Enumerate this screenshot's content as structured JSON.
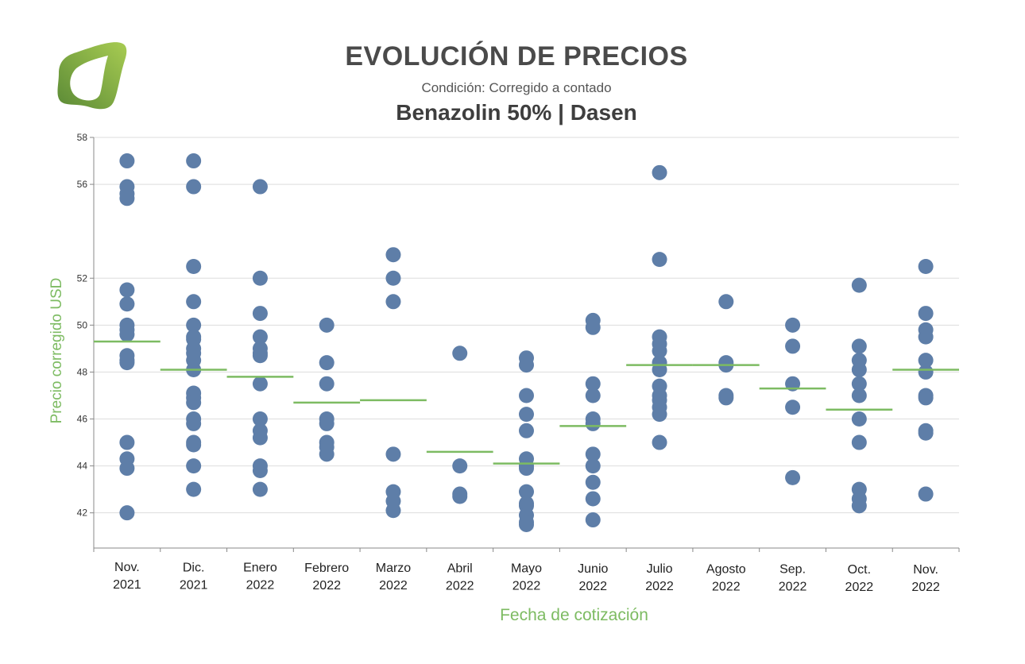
{
  "header": {
    "title": "EVOLUCIÓN DE PRECIOS",
    "subtitle": "Condición: Corregido a contado",
    "product": "Benazolin 50% | Dasen"
  },
  "logo": {
    "icon": "leaf-logo-icon",
    "colors": [
      "#9bc44c",
      "#5f8a3a"
    ]
  },
  "colors": {
    "points": "#5e7ea8",
    "mean_line": "#7dbb62",
    "axis_title": "#7dbb62",
    "grid": "#dddddd"
  },
  "chart_data": {
    "type": "scatter",
    "xlabel": "Fecha de cotización",
    "ylabel": "Precio corregido  USD",
    "ylim": [
      40.5,
      58
    ],
    "yticks": [
      42,
      44,
      46,
      48,
      50,
      52,
      56,
      58
    ],
    "ytick_labels": [
      "42",
      "44",
      "46",
      "48",
      "50",
      "52",
      "56",
      "58"
    ],
    "grid": true,
    "categories": [
      [
        "Nov.",
        "2021"
      ],
      [
        "Dic.",
        "2021"
      ],
      [
        "Enero",
        "2022"
      ],
      [
        "Febrero",
        "2022"
      ],
      [
        "Marzo",
        "2022"
      ],
      [
        "Abril",
        "2022"
      ],
      [
        "Mayo",
        "2022"
      ],
      [
        "Junio",
        "2022"
      ],
      [
        "Julio",
        "2022"
      ],
      [
        "Agosto",
        "2022"
      ],
      [
        "Sep.",
        "2022"
      ],
      [
        "Oct.",
        "2022"
      ],
      [
        "Nov.",
        "2022"
      ]
    ],
    "points": [
      [
        57,
        55.9,
        55.6,
        55.4,
        51.5,
        50.9,
        50,
        49.8,
        49.6,
        48.7,
        48.5,
        48.4,
        45,
        44.3,
        43.9,
        42
      ],
      [
        57,
        55.9,
        52.5,
        51,
        50,
        49.5,
        49.4,
        49,
        48.8,
        48.5,
        48.1,
        47.1,
        46.9,
        46.7,
        46,
        45.8,
        45,
        44.9,
        44,
        43
      ],
      [
        55.9,
        52,
        50.5,
        49.5,
        49,
        48.8,
        48.7,
        47.5,
        46,
        45.5,
        45.2,
        44,
        43.8,
        43
      ],
      [
        50,
        48.4,
        47.5,
        46,
        45.8,
        45,
        44.8,
        44.5
      ],
      [
        53,
        52,
        51,
        44.5,
        42.9,
        42.5,
        42.1
      ],
      [
        48.8,
        44,
        42.8,
        42.7
      ],
      [
        48.6,
        48.3,
        47,
        46.2,
        45.5,
        44.3,
        44,
        43.9,
        42.9,
        42.4,
        42.3,
        41.9,
        41.6,
        41.5
      ],
      [
        50.2,
        49.9,
        47.5,
        47,
        46,
        45.8,
        44.5,
        44,
        43.3,
        42.6,
        41.7
      ],
      [
        56.5,
        52.8,
        49.5,
        49.2,
        48.9,
        48.4,
        48.1,
        47.4,
        47,
        46.8,
        46.5,
        46.2,
        45
      ],
      [
        51,
        48.4,
        48.3,
        47,
        46.9
      ],
      [
        50,
        49.1,
        47.5,
        46.5,
        43.5
      ],
      [
        51.7,
        49.1,
        48.5,
        48.1,
        47.5,
        47,
        46,
        45,
        43,
        42.6,
        42.3
      ],
      [
        52.5,
        50.5,
        49.8,
        49.5,
        48.5,
        48,
        47,
        46.9,
        45.5,
        45.4,
        42.8
      ]
    ],
    "means": [
      49.3,
      48.1,
      47.8,
      46.7,
      46.8,
      44.6,
      44.1,
      45.7,
      48.3,
      48.3,
      47.3,
      46.4,
      48.1
    ]
  }
}
